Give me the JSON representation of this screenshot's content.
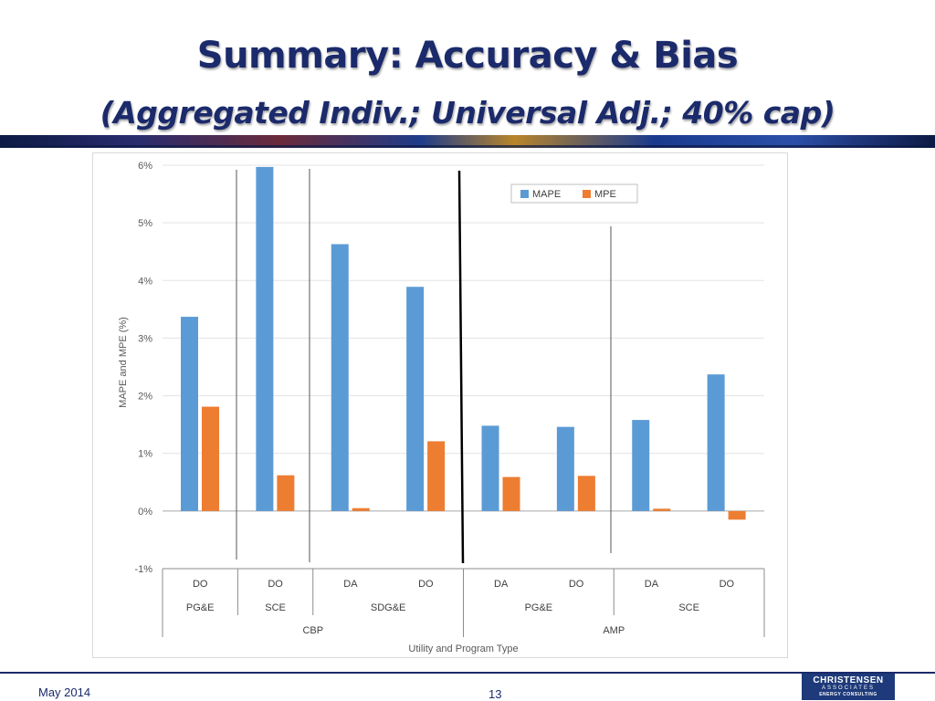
{
  "slide": {
    "title": "Summary: Accuracy & Bias",
    "subtitle": "(Aggregated Indiv.; Universal Adj.; 40% cap)",
    "footer_date": "May 2014",
    "page_number": "13",
    "logo": {
      "line1": "CHRISTENSEN",
      "line2": "ASSOCIATES",
      "line3": "ENERGY CONSULTING"
    }
  },
  "colors": {
    "title": "#1b2a6b",
    "mape": "#5b9bd5",
    "mpe": "#ed7d31"
  },
  "chart_data": {
    "type": "bar",
    "title": "",
    "xlabel": "Utility and Program Type",
    "ylabel": "MAPE and MPE (%)",
    "ylim": [
      -1,
      6
    ],
    "yticks": [
      -1,
      0,
      1,
      2,
      3,
      4,
      5,
      6
    ],
    "ytick_labels": [
      "-1%",
      "0%",
      "1%",
      "2%",
      "3%",
      "4%",
      "5%",
      "6%"
    ],
    "grid": true,
    "legend_position": "top-right",
    "categories": [
      "DO",
      "DO",
      "DA",
      "DO",
      "DA",
      "DO",
      "DA",
      "DO"
    ],
    "utilities": [
      {
        "label": "PG&E",
        "span": 1
      },
      {
        "label": "SCE",
        "span": 1
      },
      {
        "label": "SDG&E",
        "span": 2
      },
      {
        "label": "PG&E",
        "span": 2
      },
      {
        "label": "SCE",
        "span": 2
      }
    ],
    "programs": [
      {
        "label": "CBP",
        "span": 4
      },
      {
        "label": "AMP",
        "span": 4
      }
    ],
    "series": [
      {
        "name": "MAPE",
        "values": [
          3.37,
          5.97,
          4.63,
          3.89,
          1.48,
          1.46,
          1.58,
          2.37
        ]
      },
      {
        "name": "MPE",
        "values": [
          1.81,
          0.62,
          0.05,
          1.21,
          0.59,
          0.61,
          0.04,
          -0.15
        ]
      }
    ]
  }
}
